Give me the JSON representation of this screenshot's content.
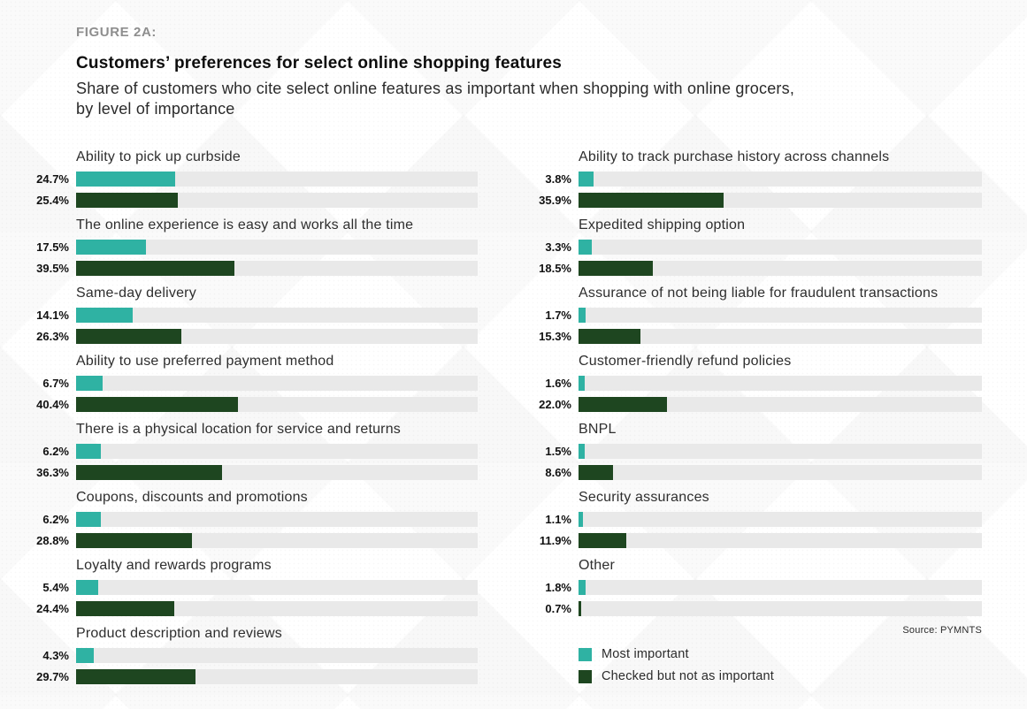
{
  "header": {
    "figure_label": "FIGURE 2A:",
    "title": "Customers’ preferences for select online shopping features",
    "subtitle_lines": [
      "Share of customers who cite select online features as important when shopping with online grocers,",
      "by level of importance"
    ]
  },
  "source": "Source: PYMNTS",
  "legend": [
    {
      "label": "Most important",
      "color": "#2FB2A3"
    },
    {
      "label": "Checked but not as important",
      "color": "#1E4620"
    }
  ],
  "colors": {
    "most_important": "#2FB2A3",
    "checked_not_important": "#1E4620",
    "bar_track": "#E9E9E9",
    "figure_label_gray": "#8E8E8E"
  },
  "chart_data": {
    "type": "bar",
    "orientation": "horizontal",
    "value_unit": "%",
    "axis_range": [
      0,
      100
    ],
    "grid": false,
    "legend_position": "bottom-right",
    "series": [
      "Most important",
      "Checked but not as important"
    ],
    "columns": [
      {
        "name": "left",
        "items": [
          {
            "label": "Ability to pick up curbside",
            "values": [
              24.7,
              25.4
            ]
          },
          {
            "label": "The online experience is easy and works all the time",
            "values": [
              17.5,
              39.5
            ]
          },
          {
            "label": "Same-day delivery",
            "values": [
              14.1,
              26.3
            ]
          },
          {
            "label": "Ability to use preferred payment method",
            "values": [
              6.7,
              40.4
            ]
          },
          {
            "label": "There is a physical location for service and returns",
            "values": [
              6.2,
              36.3
            ]
          },
          {
            "label": "Coupons, discounts and promotions",
            "values": [
              6.2,
              28.8
            ]
          },
          {
            "label": "Loyalty and rewards programs",
            "values": [
              5.4,
              24.4
            ]
          },
          {
            "label": "Product description and reviews",
            "values": [
              4.3,
              29.7
            ]
          }
        ]
      },
      {
        "name": "right",
        "items": [
          {
            "label": "Ability to track purchase history across channels",
            "values": [
              3.8,
              35.9
            ]
          },
          {
            "label": "Expedited shipping option",
            "values": [
              3.3,
              18.5
            ]
          },
          {
            "label": "Assurance of not being liable for fraudulent transactions",
            "values": [
              1.7,
              15.3
            ]
          },
          {
            "label": "Customer-friendly refund policies",
            "values": [
              1.6,
              22.0
            ]
          },
          {
            "label": "BNPL",
            "values": [
              1.5,
              8.6
            ]
          },
          {
            "label": "Security assurances",
            "values": [
              1.1,
              11.9
            ]
          },
          {
            "label": "Other",
            "values": [
              1.8,
              0.7
            ]
          }
        ]
      }
    ]
  }
}
